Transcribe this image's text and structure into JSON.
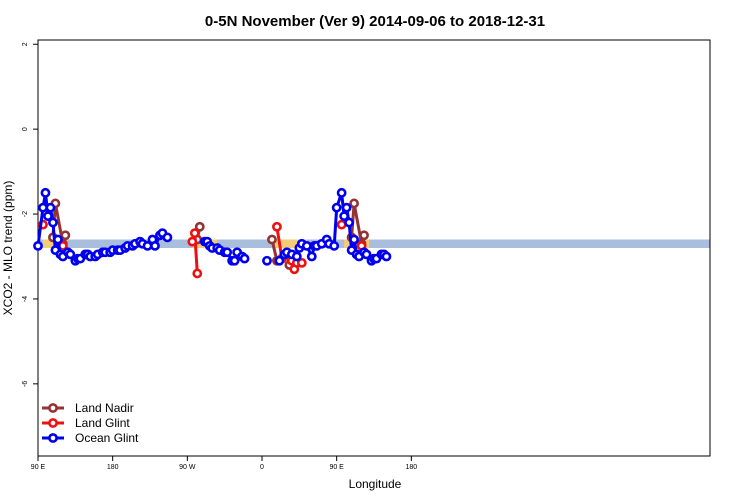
{
  "chart_data": {
    "type": "line",
    "title": "0-5N November (Ver 9)   2014-09-06 to 2018-12-31",
    "xlabel": "Longitude",
    "ylabel": "XCO2 - MLO trend (ppm)",
    "xlim": [
      -90,
      180
    ],
    "ylim": [
      -7.7,
      2.1
    ],
    "x_ticks": [
      {
        "value": -90,
        "label": "90 E"
      },
      {
        "value": -60,
        "label": "180"
      },
      {
        "value": -30,
        "label": "90 W"
      },
      {
        "value": 0,
        "label": "0"
      },
      {
        "value": 30,
        "label": "90 E"
      },
      {
        "value": 60,
        "label": "180"
      }
    ],
    "y_ticks": [
      {
        "value": 2,
        "label": "2"
      },
      {
        "value": 0,
        "label": "0"
      },
      {
        "value": -2,
        "label": "-2"
      },
      {
        "value": -4,
        "label": "-4"
      },
      {
        "value": -6,
        "label": "-6"
      }
    ],
    "band": {
      "lower": -2.8,
      "upper": -2.6,
      "color": "#a8bedc",
      "highlight_color": "#f5cd78",
      "highlight_ranges": [
        [
          -88,
          -78
        ],
        [
          -28,
          -18
        ],
        [
          5,
          18
        ],
        [
          33,
          43
        ]
      ]
    },
    "legend_position": "bottom-left",
    "series": [
      {
        "name": "Land Nadir",
        "color": "#943333",
        "points": [
          [
            -84,
            -2.55
          ],
          [
            -83,
            -1.75
          ],
          [
            -80,
            -2.7
          ],
          [
            -79,
            -2.5
          ],
          [
            -26,
            -2.6
          ],
          [
            -25,
            -2.3
          ],
          [
            4,
            -2.6
          ],
          [
            6,
            -3.1
          ],
          [
            10,
            -2.95
          ],
          [
            11,
            -3.2
          ],
          [
            36,
            -2.55
          ],
          [
            37,
            -1.75
          ],
          [
            40,
            -2.7
          ],
          [
            41,
            -2.5
          ]
        ]
      },
      {
        "name": "Land Glint",
        "color": "#ee1111",
        "points": [
          [
            -88,
            -2.25
          ],
          [
            -80,
            -2.75
          ],
          [
            -28,
            -2.65
          ],
          [
            -27,
            -2.45
          ],
          [
            -26,
            -3.4
          ],
          [
            6,
            -2.3
          ],
          [
            8,
            -3.05
          ],
          [
            12,
            -3.1
          ],
          [
            13,
            -3.3
          ],
          [
            14,
            -3.15
          ],
          [
            16,
            -3.15
          ],
          [
            32,
            -2.25
          ],
          [
            40,
            -2.75
          ]
        ]
      },
      {
        "name": "Ocean Glint",
        "color": "#0000ee",
        "points": [
          [
            -90,
            -2.75
          ],
          [
            -88,
            -1.85
          ],
          [
            -87,
            -1.5
          ],
          [
            -86,
            -2.05
          ],
          [
            -85,
            -1.85
          ],
          [
            -84,
            -2.2
          ],
          [
            -83,
            -2.85
          ],
          [
            -82,
            -2.6
          ],
          [
            -81,
            -2.95
          ],
          [
            -80,
            -3.0
          ],
          [
            -78,
            -2.9
          ],
          [
            -77,
            -2.95
          ],
          [
            -75,
            -3.1
          ],
          [
            -74,
            -3.05
          ],
          [
            -73,
            -3.05
          ],
          [
            -71,
            -2.95
          ],
          [
            -70,
            -2.95
          ],
          [
            -69,
            -3.0
          ],
          [
            -67,
            -3.0
          ],
          [
            -66,
            -2.95
          ],
          [
            -64,
            -2.9
          ],
          [
            -63,
            -2.9
          ],
          [
            -61,
            -2.9
          ],
          [
            -60,
            -2.85
          ],
          [
            -58,
            -2.85
          ],
          [
            -57,
            -2.85
          ],
          [
            -55,
            -2.8
          ],
          [
            -54,
            -2.75
          ],
          [
            -52,
            -2.75
          ],
          [
            -51,
            -2.7
          ],
          [
            -49,
            -2.65
          ],
          [
            -48,
            -2.7
          ],
          [
            -46,
            -2.75
          ],
          [
            -44,
            -2.6
          ],
          [
            -43,
            -2.75
          ],
          [
            -41,
            -2.5
          ],
          [
            -40,
            -2.45
          ],
          [
            -38,
            -2.55
          ],
          [
            -23,
            -2.65
          ],
          [
            -22,
            -2.65
          ],
          [
            -21,
            -2.75
          ],
          [
            -20,
            -2.8
          ],
          [
            -18,
            -2.8
          ],
          [
            -17,
            -2.85
          ],
          [
            -15,
            -2.9
          ],
          [
            -14,
            -2.9
          ],
          [
            -12,
            -3.1
          ],
          [
            -11,
            -3.1
          ],
          [
            -10,
            -2.9
          ],
          [
            -8,
            -3.0
          ],
          [
            -7,
            -3.05
          ],
          [
            2,
            -3.1
          ],
          [
            7,
            -3.1
          ],
          [
            9,
            -2.95
          ],
          [
            10,
            -2.9
          ],
          [
            12,
            -2.95
          ],
          [
            14,
            -3.0
          ],
          [
            15,
            -2.8
          ],
          [
            16,
            -2.7
          ],
          [
            18,
            -2.75
          ],
          [
            20,
            -3.0
          ],
          [
            21,
            -2.75
          ],
          [
            22,
            -2.75
          ],
          [
            24,
            -2.7
          ],
          [
            26,
            -2.6
          ],
          [
            27,
            -2.7
          ],
          [
            29,
            -2.75
          ],
          [
            30,
            -1.85
          ],
          [
            32,
            -1.5
          ],
          [
            33,
            -2.05
          ],
          [
            34,
            -1.85
          ],
          [
            35,
            -2.2
          ],
          [
            36,
            -2.85
          ],
          [
            37,
            -2.6
          ],
          [
            38,
            -2.95
          ],
          [
            39,
            -3.0
          ],
          [
            41,
            -2.9
          ],
          [
            42,
            -2.95
          ],
          [
            44,
            -3.1
          ],
          [
            45,
            -3.05
          ],
          [
            46,
            -3.05
          ],
          [
            48,
            -2.95
          ],
          [
            49,
            -2.95
          ],
          [
            50,
            -3.0
          ]
        ]
      }
    ]
  }
}
